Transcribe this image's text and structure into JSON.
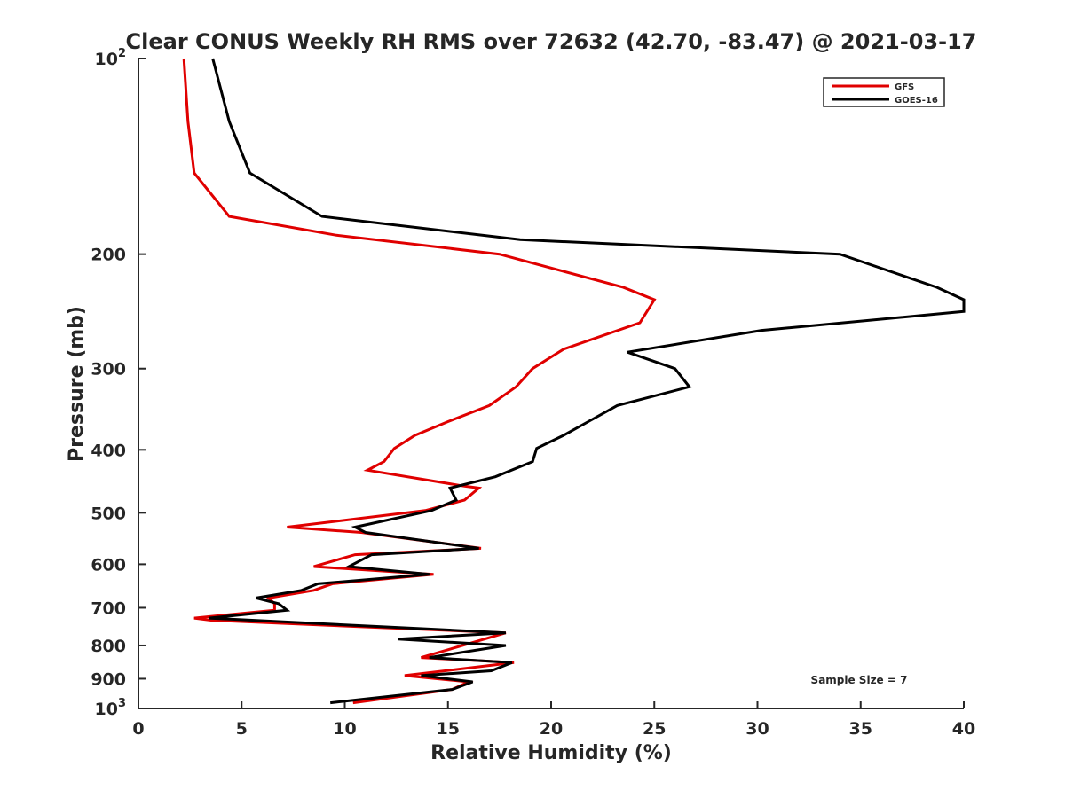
{
  "chart_data": {
    "type": "line",
    "title": "Clear CONUS Weekly RH RMS over 72632 (42.70, -83.47) @ 2021-03-17",
    "xlabel": "Relative Humidity (%)",
    "ylabel": "Pressure (mb)",
    "xlim": [
      0,
      40
    ],
    "ylim": [
      100,
      1000
    ],
    "yscale": "log",
    "y_reversed": true,
    "grid": false,
    "legend_position": "top-right",
    "x_ticks": [
      "0",
      "5",
      "10",
      "15",
      "20",
      "25",
      "30",
      "35",
      "40"
    ],
    "y_ticks": [
      {
        "value": 100,
        "base": "10",
        "exp": "2"
      },
      {
        "value": 200,
        "label": "200"
      },
      {
        "value": 300,
        "label": "300"
      },
      {
        "value": 400,
        "label": "400"
      },
      {
        "value": 500,
        "label": "500"
      },
      {
        "value": 600,
        "label": "600"
      },
      {
        "value": 700,
        "label": "700"
      },
      {
        "value": 800,
        "label": "800"
      },
      {
        "value": 900,
        "label": "900"
      },
      {
        "value": 1000,
        "base": "10",
        "exp": "3"
      }
    ],
    "annotation": "Sample Size = 7",
    "series": [
      {
        "name": "GFS",
        "color": "#e00000",
        "points": [
          [
            2.2,
            100
          ],
          [
            2.4,
            125
          ],
          [
            2.7,
            150
          ],
          [
            4.4,
            175
          ],
          [
            9.6,
            187
          ],
          [
            17.5,
            200
          ],
          [
            23.5,
            225
          ],
          [
            25.0,
            235
          ],
          [
            24.3,
            255
          ],
          [
            20.6,
            280
          ],
          [
            19.1,
            300
          ],
          [
            18.3,
            320
          ],
          [
            17.0,
            342
          ],
          [
            15.0,
            362
          ],
          [
            13.4,
            380
          ],
          [
            12.4,
            398
          ],
          [
            11.9,
            417
          ],
          [
            11.1,
            430
          ],
          [
            15.8,
            455
          ],
          [
            16.5,
            458
          ],
          [
            15.8,
            478
          ],
          [
            13.9,
            496
          ],
          [
            7.2,
            526
          ],
          [
            10.8,
            536
          ],
          [
            16.6,
            567
          ],
          [
            10.5,
            580
          ],
          [
            8.5,
            605
          ],
          [
            14.3,
            622
          ],
          [
            9.4,
            643
          ],
          [
            8.5,
            658
          ],
          [
            6.3,
            676
          ],
          [
            6.6,
            690
          ],
          [
            6.6,
            706
          ],
          [
            2.7,
            726
          ],
          [
            3.6,
            732
          ],
          [
            17.8,
            765
          ],
          [
            13.7,
            835
          ],
          [
            18.2,
            850
          ],
          [
            12.9,
            890
          ],
          [
            16.0,
            910
          ],
          [
            15.2,
            935
          ],
          [
            10.4,
            980
          ]
        ]
      },
      {
        "name": "GOES-16",
        "color": "#000000",
        "points": [
          [
            3.6,
            100
          ],
          [
            4.4,
            125
          ],
          [
            5.4,
            150
          ],
          [
            8.9,
            175
          ],
          [
            18.5,
            190
          ],
          [
            34.0,
            200
          ],
          [
            38.7,
            225
          ],
          [
            40.0,
            235
          ],
          [
            40.0,
            245
          ],
          [
            30.2,
            262
          ],
          [
            23.7,
            283
          ],
          [
            26.0,
            300
          ],
          [
            26.7,
            320
          ],
          [
            23.2,
            342
          ],
          [
            21.8,
            362
          ],
          [
            20.6,
            380
          ],
          [
            19.3,
            398
          ],
          [
            19.1,
            417
          ],
          [
            17.3,
            440
          ],
          [
            15.1,
            458
          ],
          [
            15.4,
            478
          ],
          [
            14.2,
            496
          ],
          [
            10.5,
            526
          ],
          [
            11.0,
            536
          ],
          [
            16.5,
            567
          ],
          [
            11.3,
            580
          ],
          [
            10.2,
            605
          ],
          [
            14.1,
            622
          ],
          [
            8.7,
            643
          ],
          [
            7.9,
            658
          ],
          [
            5.7,
            676
          ],
          [
            6.8,
            690
          ],
          [
            7.2,
            706
          ],
          [
            3.4,
            726
          ],
          [
            17.8,
            765
          ],
          [
            12.6,
            782
          ],
          [
            17.8,
            800
          ],
          [
            14.1,
            835
          ],
          [
            18.1,
            850
          ],
          [
            17.1,
            875
          ],
          [
            13.7,
            890
          ],
          [
            16.2,
            910
          ],
          [
            15.2,
            935
          ],
          [
            9.3,
            980
          ]
        ]
      }
    ]
  }
}
